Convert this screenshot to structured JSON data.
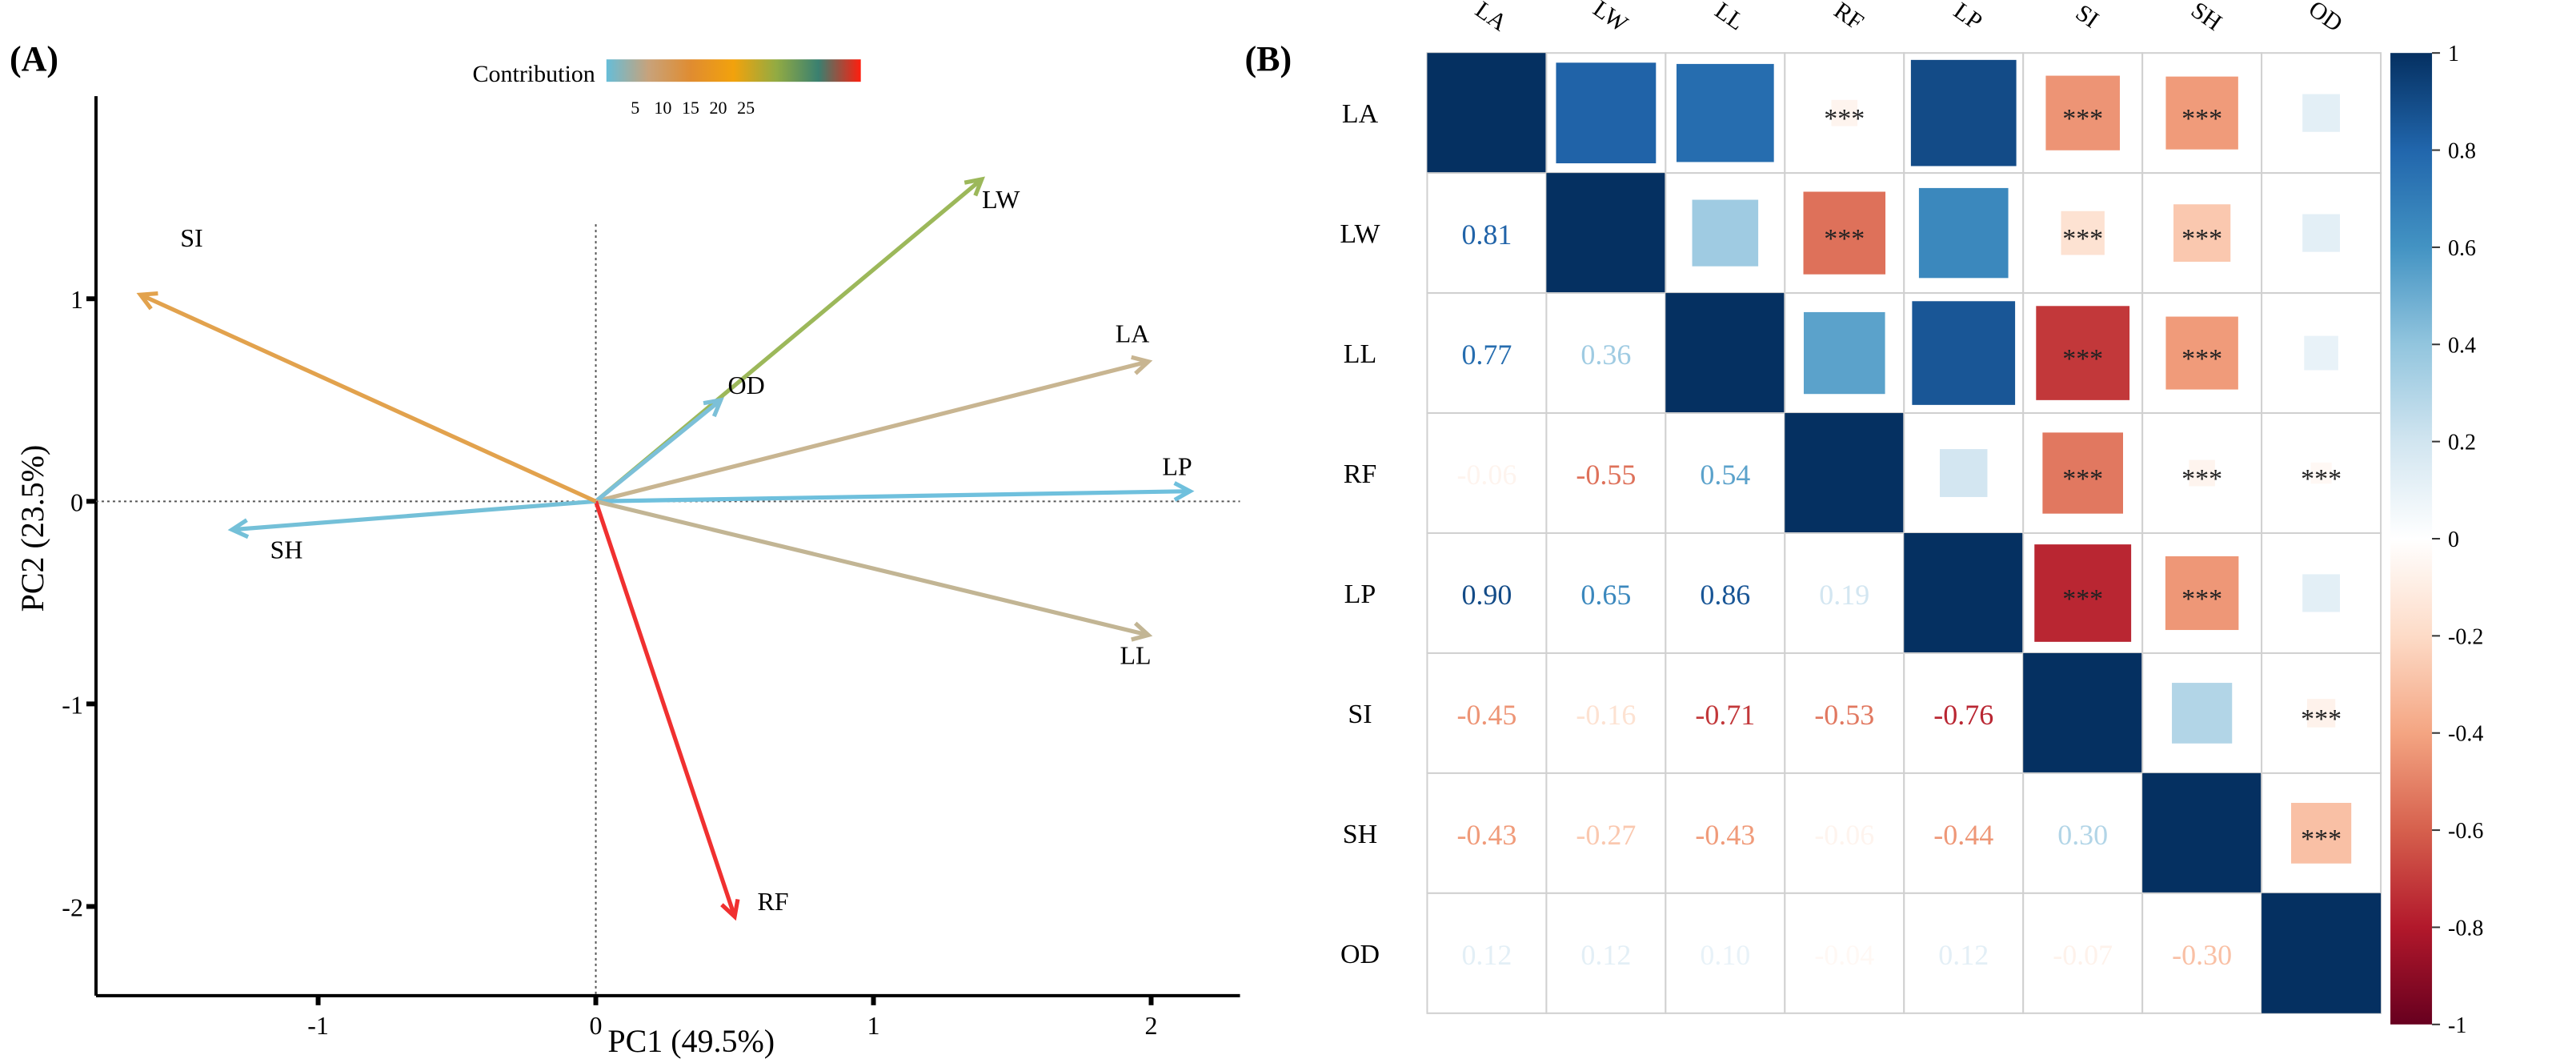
{
  "chart_data": [
    {
      "panel_label": "(A)",
      "type": "scatter",
      "subtype": "pca-biplot-arrows",
      "xlabel": "PC1 (49.5%)",
      "ylabel": "PC2 (23.5%)",
      "xlim": [
        -1.8,
        2.32
      ],
      "ylim": [
        -2.44,
        2.0
      ],
      "xticks": [
        -1,
        0,
        1,
        2
      ],
      "yticks": [
        1,
        0,
        -1,
        -2
      ],
      "legend": {
        "title": "Contribution",
        "ticks": [
          "5",
          "10",
          "15",
          "20",
          "25"
        ],
        "gradient": [
          "#66bdd8",
          "#c8a27a",
          "#e08c30",
          "#f2a20c",
          "#93ab42",
          "#3a8070",
          "#ff1e0e"
        ],
        "placement": "top"
      },
      "series": [
        {
          "name": "LW",
          "x": 1.39,
          "y": 1.59,
          "color": "#9cb85a"
        },
        {
          "name": "LA",
          "x": 1.99,
          "y": 0.69,
          "color": "#c8b591"
        },
        {
          "name": "OD",
          "x": 0.45,
          "y": 0.5,
          "color": "#7cc0d8"
        },
        {
          "name": "LP",
          "x": 2.14,
          "y": 0.05,
          "color": "#6fc0dd"
        },
        {
          "name": "LL",
          "x": 1.99,
          "y": -0.66,
          "color": "#c2b594"
        },
        {
          "name": "RF",
          "x": 0.5,
          "y": -2.05,
          "color": "#f03030"
        },
        {
          "name": "SH",
          "x": -1.31,
          "y": -0.14,
          "color": "#74c0d8"
        },
        {
          "name": "SI",
          "x": -1.64,
          "y": 1.02,
          "color": "#e2a24d"
        }
      ]
    },
    {
      "panel_label": "(B)",
      "type": "heatmap",
      "subtype": "correlation-matrix",
      "variables": [
        "LA",
        "LW",
        "LL",
        "RF",
        "LP",
        "SI",
        "SH",
        "OD"
      ],
      "matrix": [
        [
          1,
          0.81,
          0.77,
          -0.06,
          0.9,
          -0.45,
          -0.43,
          0.12
        ],
        [
          0.81,
          1,
          0.36,
          -0.55,
          0.65,
          -0.16,
          -0.27,
          0.12
        ],
        [
          0.77,
          0.36,
          1,
          0.54,
          0.86,
          -0.71,
          -0.43,
          0.1
        ],
        [
          -0.06,
          -0.55,
          0.54,
          1,
          0.19,
          -0.53,
          -0.06,
          -0.04
        ],
        [
          0.9,
          0.65,
          0.86,
          0.19,
          1,
          -0.76,
          -0.44,
          0.12
        ],
        [
          -0.45,
          -0.16,
          -0.71,
          -0.53,
          -0.76,
          1,
          0.3,
          -0.07
        ],
        [
          -0.43,
          -0.27,
          -0.43,
          -0.06,
          -0.44,
          0.3,
          1,
          -0.3
        ],
        [
          0.12,
          0.12,
          0.1,
          -0.04,
          0.12,
          -0.07,
          -0.3,
          1
        ]
      ],
      "significance_mark": "***",
      "significant_pairs": [
        [
          0,
          3
        ],
        [
          0,
          5
        ],
        [
          0,
          6
        ],
        [
          1,
          3
        ],
        [
          1,
          5
        ],
        [
          1,
          6
        ],
        [
          2,
          5
        ],
        [
          2,
          6
        ],
        [
          3,
          5
        ],
        [
          3,
          6
        ],
        [
          3,
          7
        ],
        [
          4,
          5
        ],
        [
          4,
          6
        ],
        [
          5,
          7
        ],
        [
          6,
          7
        ]
      ],
      "lower": "number",
      "upper": "square",
      "colorbar": {
        "range": [
          -1,
          1
        ],
        "ticks": [
          "1",
          "0.8",
          "0.6",
          "0.4",
          "0.2",
          "0",
          "-0.2",
          "-0.4",
          "-0.6",
          "-0.8",
          "-1"
        ],
        "stops": [
          "#67001f",
          "#b2182b",
          "#d6604d",
          "#f4a582",
          "#fddbc7",
          "#ffffff",
          "#d1e5f0",
          "#92c5de",
          "#4393c3",
          "#2166ac",
          "#053061"
        ]
      }
    }
  ]
}
